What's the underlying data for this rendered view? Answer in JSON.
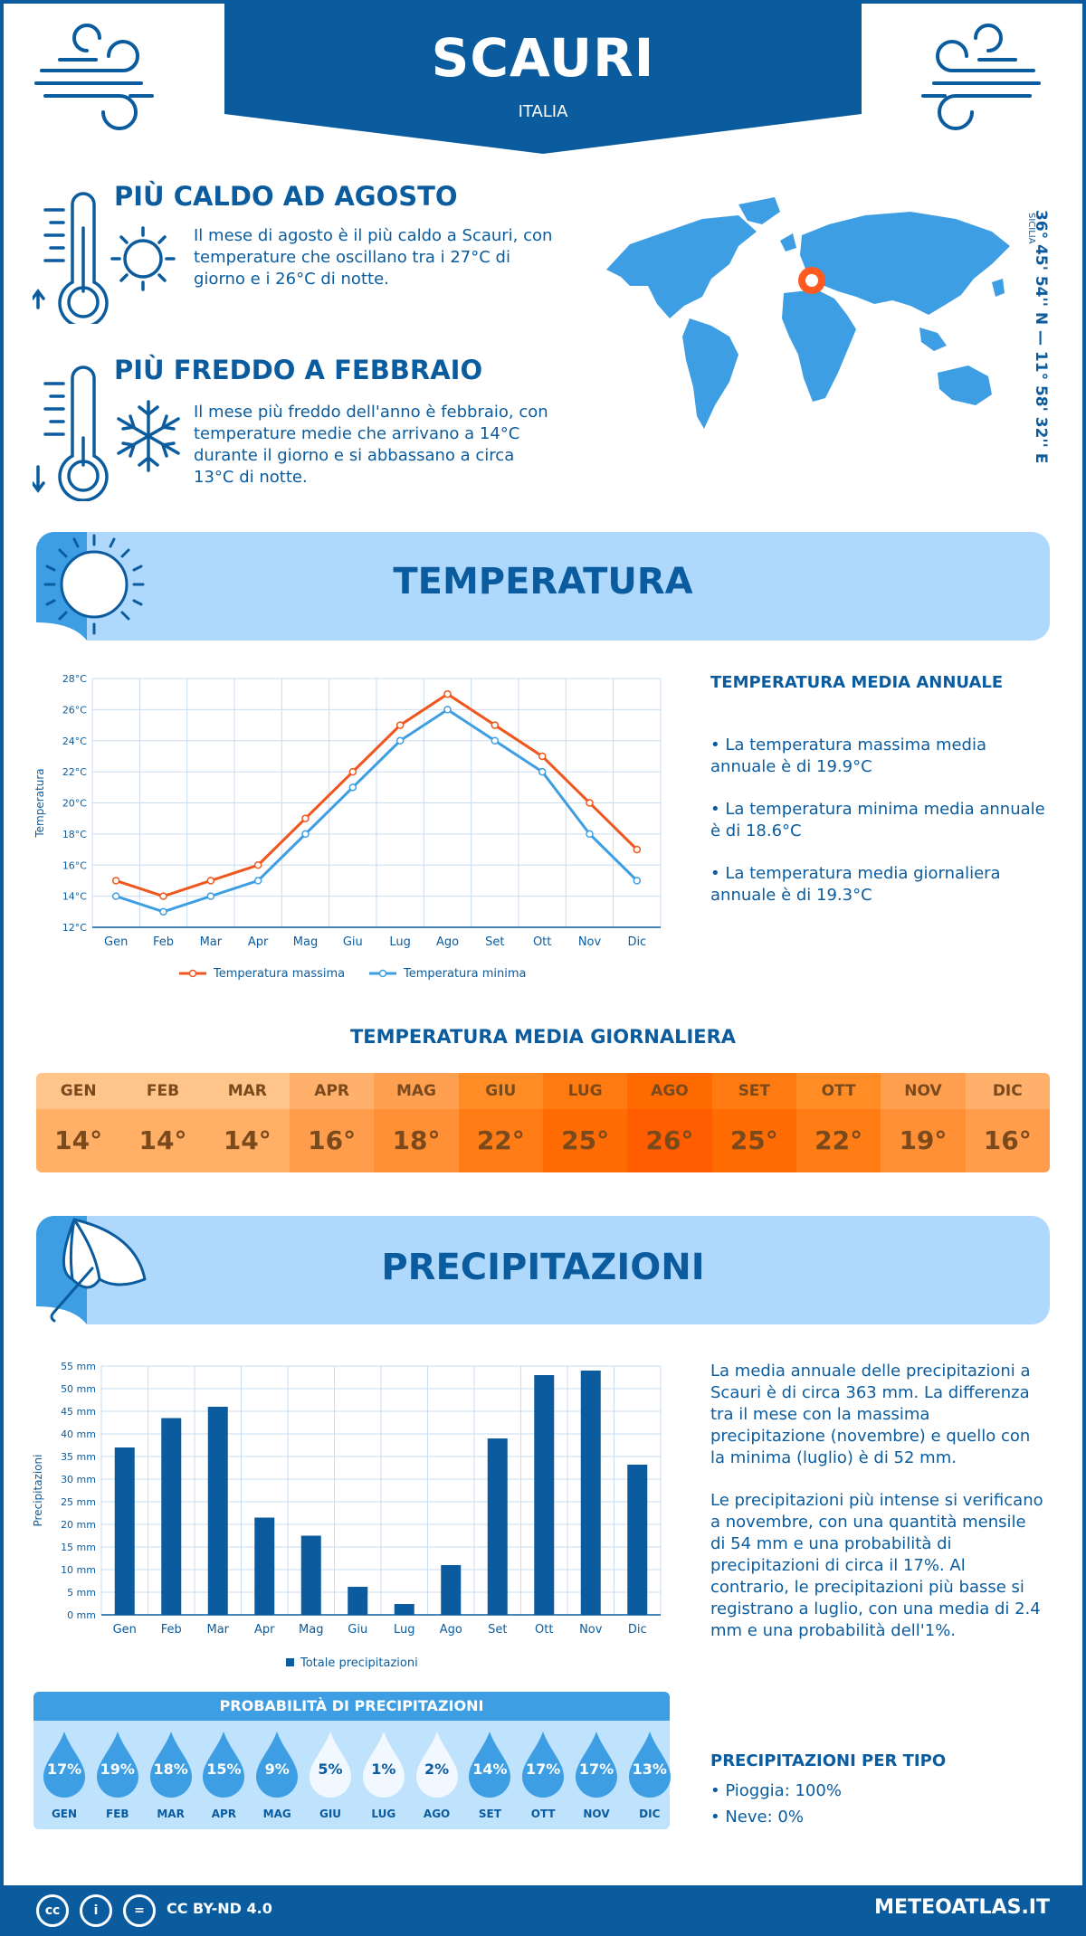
{
  "header": {
    "city": "SCAURI",
    "country": "ITALIA"
  },
  "highlights": {
    "hottest": {
      "title": "PIÙ CALDO AD AGOSTO",
      "text": "Il mese di agosto è il più caldo a Scauri, con temperature che oscillano tra i 27°C di giorno e i 26°C di notte."
    },
    "coldest": {
      "title": "PIÙ FREDDO A FEBBRAIO",
      "text": "Il mese più freddo dell'anno è febbraio, con temperature medie che arrivano a 14°C durante il giorno e si abbassano a circa 13°C di notte."
    }
  },
  "location": {
    "coords": "36° 45' 54'' N — 11° 58' 32'' E",
    "region": "SICILIA"
  },
  "temperature_section": {
    "title": "TEMPERATURA",
    "annual_title": "TEMPERATURA MEDIA ANNUALE",
    "facts": [
      "• La temperatura massima media annuale è di 19.9°C",
      "• La temperatura minima media annuale è di 18.6°C",
      "• La temperatura media giornaliera annuale è di 19.3°C"
    ]
  },
  "daily_section": {
    "title": "TEMPERATURA MEDIA GIORNALIERA",
    "months": [
      "GEN",
      "FEB",
      "MAR",
      "APR",
      "MAG",
      "GIU",
      "LUG",
      "AGO",
      "SET",
      "OTT",
      "NOV",
      "DIC"
    ],
    "values": [
      "14°",
      "14°",
      "14°",
      "16°",
      "18°",
      "22°",
      "25°",
      "26°",
      "25°",
      "22°",
      "19°",
      "16°"
    ],
    "colors_head": [
      "#ffc48a",
      "#ffc48a",
      "#ffc48a",
      "#ffb06a",
      "#ffa050",
      "#ff8c24",
      "#ff7a10",
      "#ff6a00",
      "#ff7a10",
      "#ff8c24",
      "#ffa050",
      "#ffb06a"
    ],
    "colors_val": [
      "#ffb066",
      "#ffb066",
      "#ffb066",
      "#ff9d4c",
      "#ff9036",
      "#ff7d14",
      "#ff6c04",
      "#ff5d00",
      "#ff6c04",
      "#ff7d14",
      "#ff9036",
      "#ff9d4c"
    ]
  },
  "precip_section": {
    "title": "PRECIPITAZIONI",
    "text1": "La media annuale delle precipitazioni a Scauri è di circa 363 mm. La differenza tra il mese con la massima precipitazione (novembre) e quello con la minima (luglio) è di 52 mm.",
    "text2": "Le precipitazioni più intense si verificano a novembre, con una quantità mensile di 54 mm e una probabilità di precipitazioni di circa il 17%. Al contrario, le precipitazioni più basse si registrano a luglio, con una media di 2.4 mm e una probabilità dell'1%."
  },
  "probability": {
    "title": "PROBABILITÀ DI PRECIPITAZIONI",
    "months": [
      "GEN",
      "FEB",
      "MAR",
      "APR",
      "MAG",
      "GIU",
      "LUG",
      "AGO",
      "SET",
      "OTT",
      "NOV",
      "DIC"
    ],
    "values": [
      17,
      19,
      18,
      15,
      9,
      5,
      1,
      2,
      14,
      17,
      17,
      13
    ],
    "labels": [
      "17%",
      "19%",
      "18%",
      "15%",
      "9%",
      "5%",
      "1%",
      "2%",
      "14%",
      "17%",
      "17%",
      "13%"
    ]
  },
  "precip_types": {
    "title": "PRECIPITAZIONI PER TIPO",
    "items": [
      "• Pioggia: 100%",
      "• Neve: 0%"
    ]
  },
  "footer": {
    "license": "CC BY-ND 4.0",
    "site": "METEOATLAS.IT"
  },
  "chart_data": [
    {
      "type": "line",
      "ylabel": "Temperatura",
      "ylim": [
        12,
        28
      ],
      "y_ticks": [
        "12°C",
        "14°C",
        "16°C",
        "18°C",
        "20°C",
        "22°C",
        "24°C",
        "26°C",
        "28°C"
      ],
      "categories": [
        "Gen",
        "Feb",
        "Mar",
        "Apr",
        "Mag",
        "Giu",
        "Lug",
        "Ago",
        "Set",
        "Ott",
        "Nov",
        "Dic"
      ],
      "series": [
        {
          "name": "Temperatura massima",
          "color": "#f0561d",
          "values": [
            15,
            14,
            15,
            16,
            19,
            22,
            25,
            27,
            25,
            23,
            20,
            17
          ]
        },
        {
          "name": "Temperatura minima",
          "color": "#3d9ee3",
          "values": [
            14,
            13,
            14,
            15,
            18,
            21,
            24,
            26,
            24,
            22,
            18,
            15
          ]
        }
      ],
      "grid": true,
      "legend": "bottom"
    },
    {
      "type": "bar",
      "ylabel": "Precipitazioni",
      "ylim": [
        0,
        55
      ],
      "y_ticks": [
        "0 mm",
        "5 mm",
        "10 mm",
        "15 mm",
        "20 mm",
        "25 mm",
        "30 mm",
        "35 mm",
        "40 mm",
        "45 mm",
        "50 mm",
        "55 mm"
      ],
      "categories": [
        "Gen",
        "Feb",
        "Mar",
        "Apr",
        "Mag",
        "Giu",
        "Lug",
        "Ago",
        "Set",
        "Ott",
        "Nov",
        "Dic"
      ],
      "series": [
        {
          "name": "Totale precipitazioni",
          "color": "#0b5c9e",
          "values": [
            37,
            43.5,
            46,
            21.5,
            17.5,
            6.2,
            2.4,
            11,
            39,
            53,
            54,
            33.2
          ]
        }
      ],
      "grid": true,
      "legend": "bottom"
    }
  ]
}
